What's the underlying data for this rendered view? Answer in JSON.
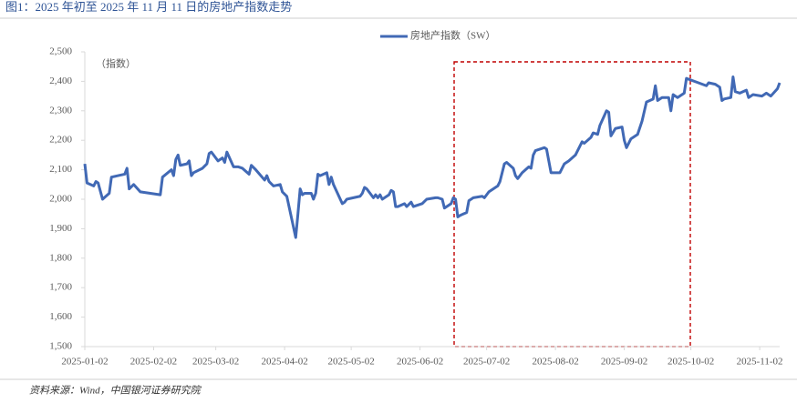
{
  "title": "图1：2025 年初至 2025 年 11 月 11 日的房地产指数走势",
  "source": "资料来源：Wind，中国银河证券研究院",
  "chart_data": {
    "type": "line",
    "ylabel": "（指数）",
    "x": [
      "2025-01-02",
      "2025-01-03",
      "2025-01-06",
      "2025-01-07",
      "2025-01-08",
      "2025-01-10",
      "2025-01-13",
      "2025-01-14",
      "2025-01-17",
      "2025-01-20",
      "2025-01-21",
      "2025-01-22",
      "2025-01-24",
      "2025-01-27",
      "2025-02-05",
      "2025-02-06",
      "2025-02-10",
      "2025-02-11",
      "2025-02-12",
      "2025-02-13",
      "2025-02-14",
      "2025-02-17",
      "2025-02-18",
      "2025-02-19",
      "2025-02-20",
      "2025-02-24",
      "2025-02-26",
      "2025-02-27",
      "2025-02-28",
      "2025-03-03",
      "2025-03-05",
      "2025-03-06",
      "2025-03-07",
      "2025-03-10",
      "2025-03-12",
      "2025-03-14",
      "2025-03-17",
      "2025-03-18",
      "2025-03-20",
      "2025-03-24",
      "2025-03-25",
      "2025-03-26",
      "2025-03-28",
      "2025-03-31",
      "2025-04-01",
      "2025-04-03",
      "2025-04-07",
      "2025-04-08",
      "2025-04-09",
      "2025-04-10",
      "2025-04-11",
      "2025-04-14",
      "2025-04-15",
      "2025-04-16",
      "2025-04-17",
      "2025-04-18",
      "2025-04-21",
      "2025-04-22",
      "2025-04-23",
      "2025-04-24",
      "2025-04-28",
      "2025-04-29",
      "2025-04-30",
      "2025-05-06",
      "2025-05-07",
      "2025-05-08",
      "2025-05-09",
      "2025-05-12",
      "2025-05-13",
      "2025-05-14",
      "2025-05-15",
      "2025-05-16",
      "2025-05-19",
      "2025-05-20",
      "2025-05-21",
      "2025-05-22",
      "2025-05-23",
      "2025-05-26",
      "2025-05-27",
      "2025-05-29",
      "2025-05-30",
      "2025-06-03",
      "2025-06-05",
      "2025-06-09",
      "2025-06-10",
      "2025-06-12",
      "2025-06-13",
      "2025-06-16",
      "2025-06-17",
      "2025-06-18",
      "2025-06-19",
      "2025-06-20",
      "2025-06-23",
      "2025-06-24",
      "2025-06-26",
      "2025-06-30",
      "2025-07-01",
      "2025-07-02",
      "2025-07-03",
      "2025-07-07",
      "2025-07-08",
      "2025-07-10",
      "2025-07-11",
      "2025-07-14",
      "2025-07-15",
      "2025-07-16",
      "2025-07-18",
      "2025-07-21",
      "2025-07-22",
      "2025-07-23",
      "2025-07-24",
      "2025-07-28",
      "2025-07-29",
      "2025-07-31",
      "2025-08-04",
      "2025-08-06",
      "2025-08-08",
      "2025-08-11",
      "2025-08-12",
      "2025-08-14",
      "2025-08-15",
      "2025-08-18",
      "2025-08-19",
      "2025-08-21",
      "2025-08-22",
      "2025-08-25",
      "2025-08-26",
      "2025-08-27",
      "2025-08-29",
      "2025-09-01",
      "2025-09-02",
      "2025-09-03",
      "2025-09-05",
      "2025-09-08",
      "2025-09-10",
      "2025-09-12",
      "2025-09-15",
      "2025-09-16",
      "2025-09-17",
      "2025-09-19",
      "2025-09-22",
      "2025-09-23",
      "2025-09-24",
      "2025-09-26",
      "2025-09-29",
      "2025-09-30",
      "2025-10-09",
      "2025-10-10",
      "2025-10-13",
      "2025-10-14",
      "2025-10-15",
      "2025-10-16",
      "2025-10-17",
      "2025-10-20",
      "2025-10-21",
      "2025-10-22",
      "2025-10-24",
      "2025-10-27",
      "2025-10-28",
      "2025-10-30",
      "2025-11-03",
      "2025-11-05",
      "2025-11-07",
      "2025-11-10",
      "2025-11-11"
    ],
    "series": [
      {
        "name": "房地产指数（SW）",
        "color": "#4169b5",
        "values": [
          2120,
          2055,
          2045,
          2060,
          2055,
          2000,
          2020,
          2075,
          2080,
          2085,
          2105,
          2035,
          2050,
          2025,
          2015,
          2075,
          2100,
          2080,
          2135,
          2150,
          2115,
          2120,
          2130,
          2080,
          2090,
          2105,
          2120,
          2155,
          2160,
          2130,
          2140,
          2125,
          2160,
          2110,
          2110,
          2105,
          2085,
          2115,
          2100,
          2065,
          2080,
          2060,
          2045,
          2050,
          2025,
          2010,
          1870,
          1950,
          2035,
          2015,
          2020,
          2020,
          2000,
          2020,
          2085,
          2080,
          2090,
          2050,
          2075,
          2050,
          1985,
          1990,
          2000,
          2010,
          2020,
          2040,
          2035,
          2005,
          2015,
          2005,
          2015,
          2000,
          2015,
          2030,
          2025,
          1975,
          1975,
          1985,
          1975,
          1990,
          1975,
          1985,
          2000,
          2005,
          2005,
          2000,
          1970,
          1985,
          2005,
          2000,
          1940,
          1945,
          1955,
          1995,
          2005,
          2010,
          2005,
          2015,
          2025,
          2045,
          2060,
          2120,
          2125,
          2105,
          2080,
          2070,
          2090,
          2110,
          2105,
          2150,
          2165,
          2175,
          2170,
          2090,
          2090,
          2120,
          2130,
          2150,
          2165,
          2195,
          2190,
          2210,
          2225,
          2220,
          2250,
          2300,
          2295,
          2215,
          2240,
          2245,
          2200,
          2175,
          2205,
          2220,
          2265,
          2330,
          2340,
          2385,
          2335,
          2345,
          2345,
          2300,
          2355,
          2345,
          2360,
          2410,
          2385,
          2395,
          2390,
          2385,
          2380,
          2335,
          2340,
          2345,
          2415,
          2365,
          2360,
          2370,
          2345,
          2355,
          2350,
          2360,
          2350,
          2375,
          2395
        ]
      }
    ],
    "xlim": [
      "2025-01-02",
      "2025-11-11"
    ],
    "xticks": [
      "2025-01-02",
      "2025-02-02",
      "2025-03-02",
      "2025-04-02",
      "2025-05-02",
      "2025-06-02",
      "2025-07-02",
      "2025-08-02",
      "2025-09-02",
      "2025-10-02",
      "2025-11-02"
    ],
    "ylim": [
      1500,
      2500
    ],
    "yticks": [
      {
        "value": 1500,
        "label": "1,500"
      },
      {
        "value": 1600,
        "label": "1,600"
      },
      {
        "value": 1700,
        "label": "1,700"
      },
      {
        "value": 1800,
        "label": "1,800"
      },
      {
        "value": 1900,
        "label": "1,900"
      },
      {
        "value": 2000,
        "label": "2,000"
      },
      {
        "value": 2100,
        "label": "2,100"
      },
      {
        "value": 2200,
        "label": "2,200"
      },
      {
        "value": 2300,
        "label": "2,300"
      },
      {
        "value": 2400,
        "label": "2,400"
      },
      {
        "value": 2500,
        "label": "2,500"
      }
    ],
    "legend": "top"
  }
}
